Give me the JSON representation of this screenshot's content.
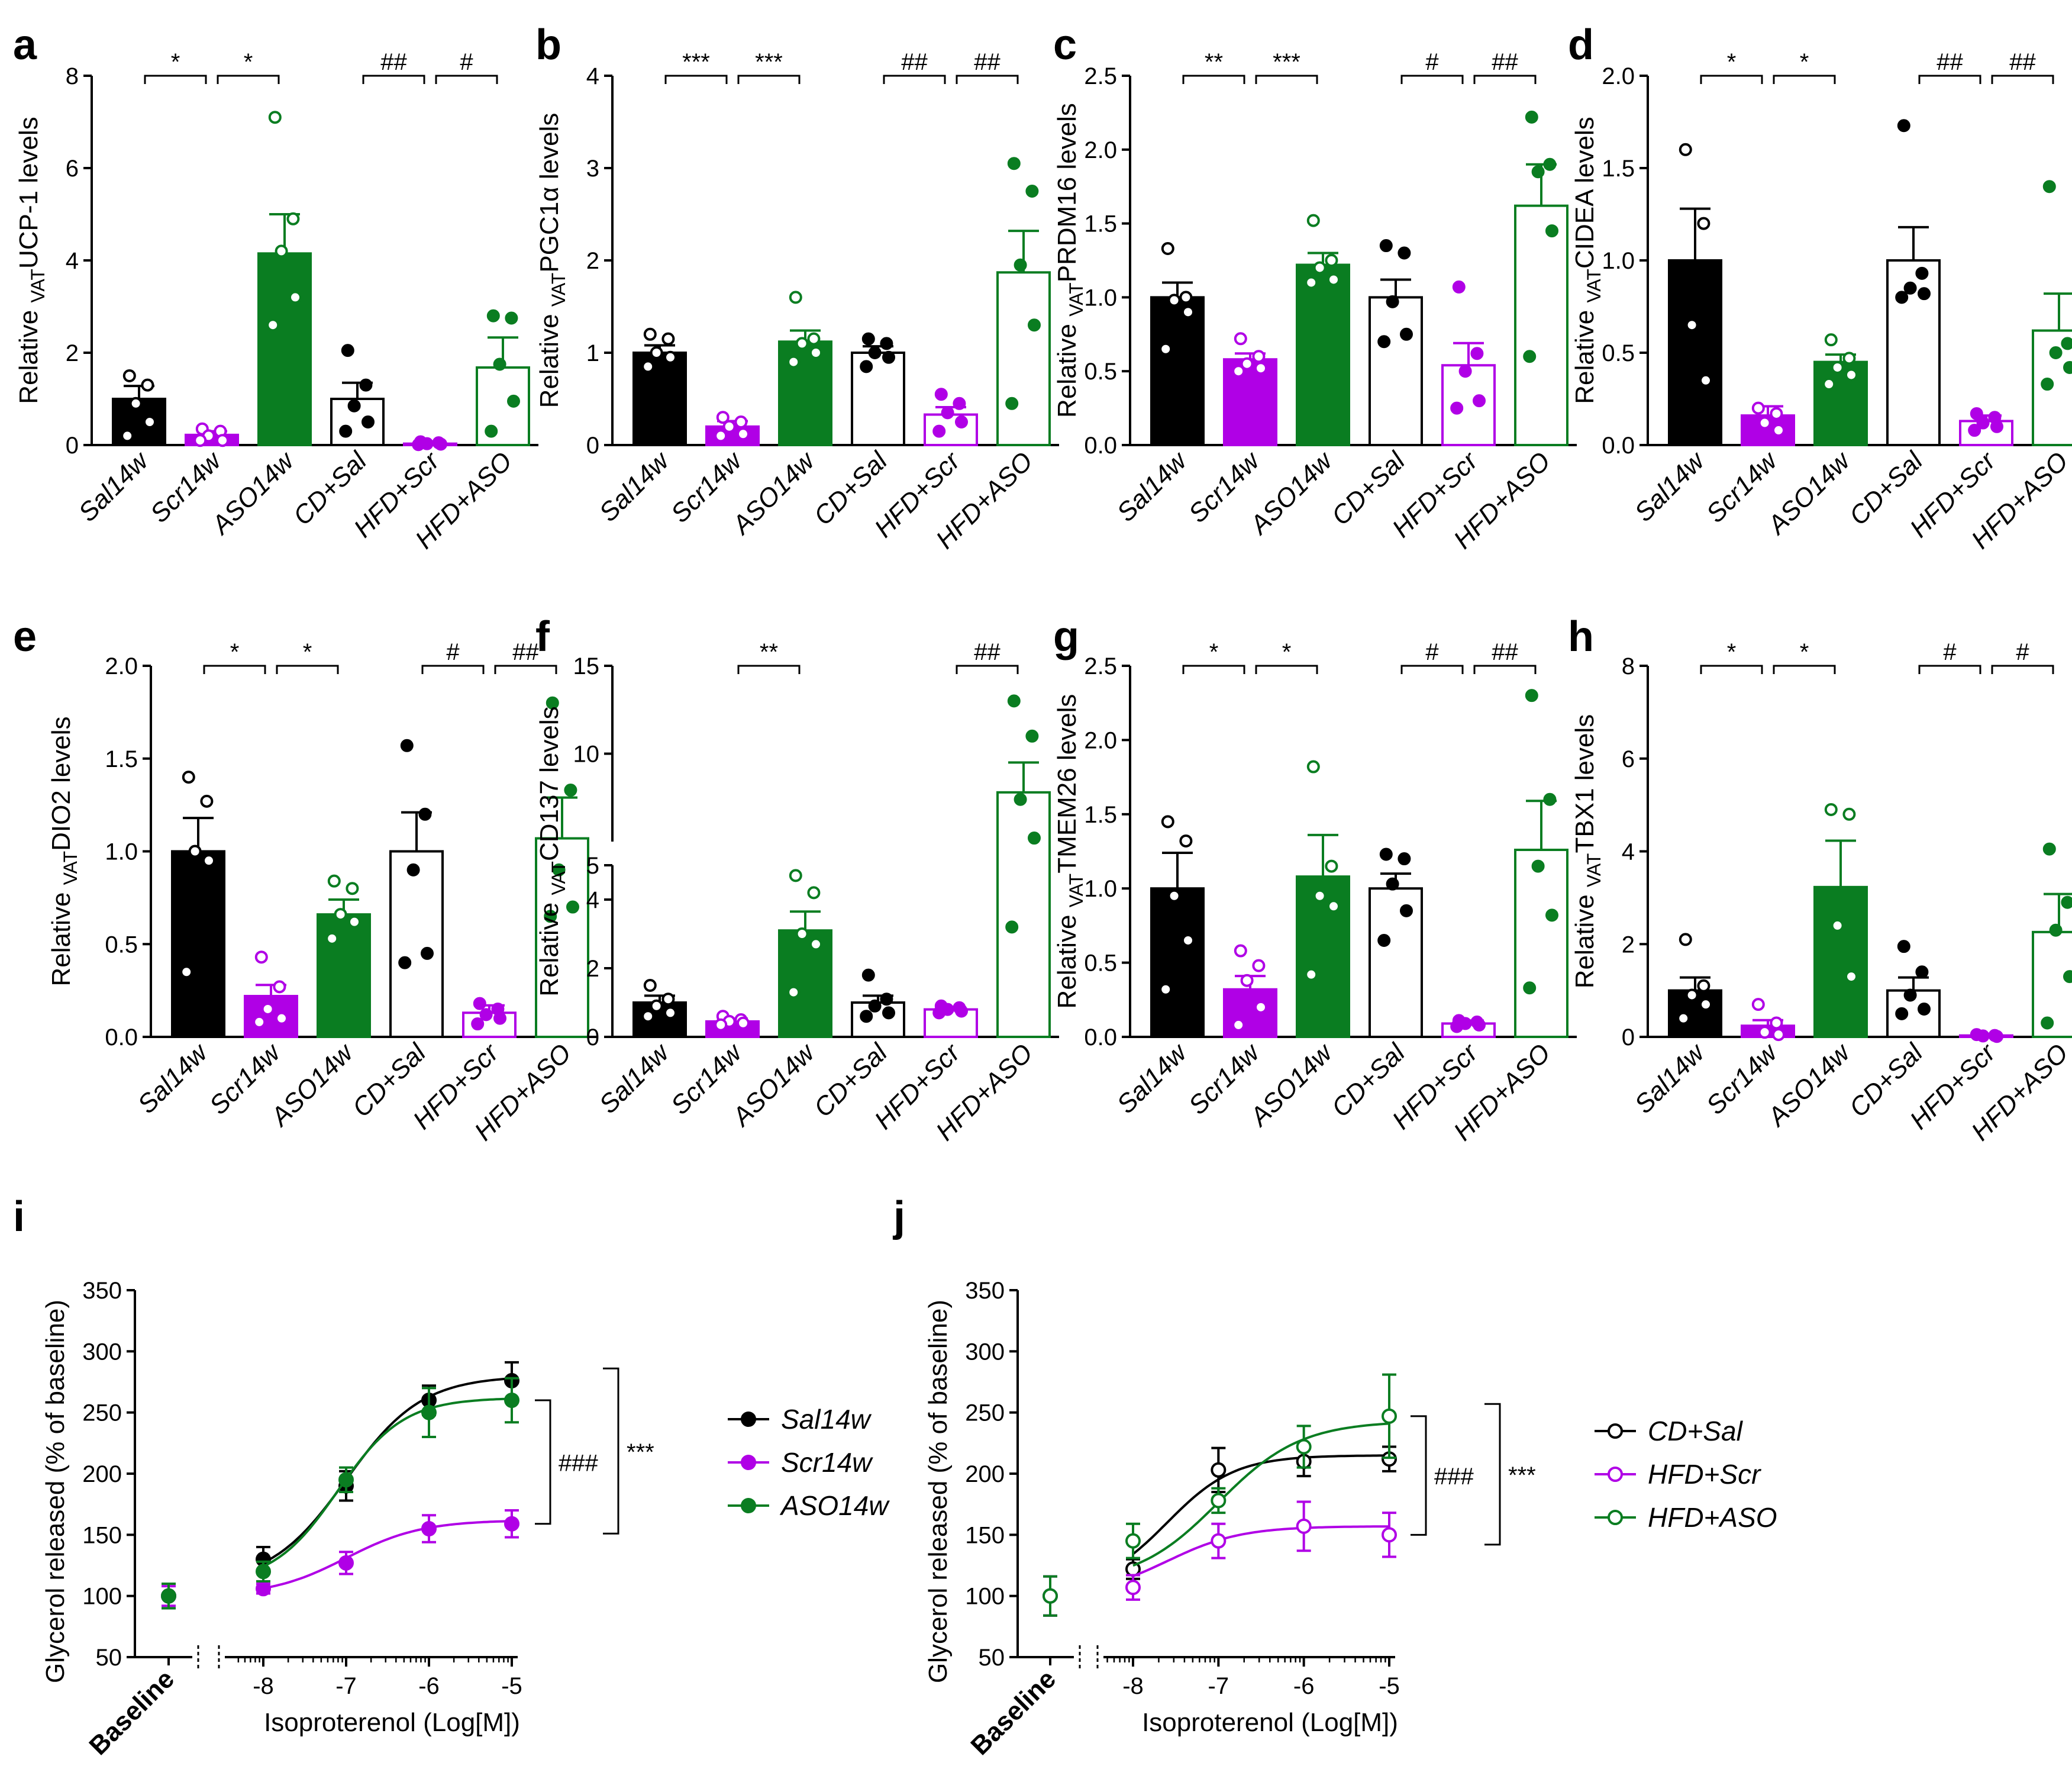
{
  "colors": {
    "black": "#000000",
    "purple": "#B000E6",
    "green": "#0A7D21",
    "white": "#FFFFFF"
  },
  "chart_data": [
    {
      "id": "a",
      "type": "bar",
      "label": "a",
      "ylabel_pre": "Relative ",
      "ylabel_sub": "VAT",
      "ylabel_post": "UCP-1 levels",
      "categories": [
        "Sal14w",
        "Scr14w",
        "ASO14w",
        "CD+Sal",
        "HFD+Scr",
        "HFD+ASO"
      ],
      "values": [
        1.0,
        0.22,
        4.15,
        1.0,
        0.03,
        1.68
      ],
      "errors": [
        0.28,
        0.08,
        0.85,
        0.35,
        0.02,
        0.65
      ],
      "points": [
        [
          1.5,
          1.3,
          0.9,
          0.5,
          0.2
        ],
        [
          0.35,
          0.3,
          0.2,
          0.1,
          0.1
        ],
        [
          7.1,
          4.9,
          4.2,
          3.2,
          2.6
        ],
        [
          2.05,
          1.3,
          0.85,
          0.5,
          0.3
        ],
        [
          0.07,
          0.05,
          0.03,
          0.02,
          0.01
        ],
        [
          2.8,
          2.75,
          1.75,
          0.95,
          0.3
        ]
      ],
      "ylim": [
        0,
        8
      ],
      "yticks": [
        0,
        2,
        4,
        6,
        8
      ],
      "ytick_labels": [
        "0",
        "2",
        "4",
        "6",
        "8"
      ],
      "sig": [
        {
          "from": 0,
          "to": 1,
          "text": "*"
        },
        {
          "from": 1,
          "to": 2,
          "text": "*"
        },
        {
          "from": 3,
          "to": 4,
          "text": "##"
        },
        {
          "from": 4,
          "to": 5,
          "text": "#"
        }
      ]
    },
    {
      "id": "b",
      "type": "bar",
      "label": "b",
      "ylabel_pre": "Relative ",
      "ylabel_sub": "VAT",
      "ylabel_post": "PGC1α levels",
      "categories": [
        "Sal14w",
        "Scr14w",
        "ASO14w",
        "CD+Sal",
        "HFD+Scr",
        "HFD+ASO"
      ],
      "values": [
        1.0,
        0.2,
        1.12,
        1.0,
        0.33,
        1.87
      ],
      "errors": [
        0.08,
        0.06,
        0.12,
        0.07,
        0.08,
        0.45
      ],
      "points": [
        [
          1.2,
          1.15,
          1.0,
          0.95,
          0.85
        ],
        [
          0.3,
          0.25,
          0.2,
          0.12,
          0.1
        ],
        [
          1.6,
          1.15,
          1.1,
          1.0,
          0.9
        ],
        [
          1.15,
          1.1,
          1.0,
          0.95,
          0.85
        ],
        [
          0.55,
          0.45,
          0.35,
          0.25,
          0.15
        ],
        [
          3.05,
          2.75,
          1.95,
          1.3,
          0.45
        ]
      ],
      "ylim": [
        0,
        4
      ],
      "yticks": [
        0,
        1,
        2,
        3,
        4
      ],
      "ytick_labels": [
        "0",
        "1",
        "2",
        "3",
        "4"
      ],
      "sig": [
        {
          "from": 0,
          "to": 1,
          "text": "***"
        },
        {
          "from": 1,
          "to": 2,
          "text": "***"
        },
        {
          "from": 3,
          "to": 4,
          "text": "##"
        },
        {
          "from": 4,
          "to": 5,
          "text": "##"
        }
      ]
    },
    {
      "id": "c",
      "type": "bar",
      "label": "c",
      "ylabel_pre": "Relative ",
      "ylabel_sub": "VAT",
      "ylabel_post": "PRDM16 levels",
      "categories": [
        "Sal14w",
        "Scr14w",
        "ASO14w",
        "CD+Sal",
        "HFD+Scr",
        "HFD+ASO"
      ],
      "values": [
        1.0,
        0.58,
        1.22,
        1.0,
        0.54,
        1.62
      ],
      "errors": [
        0.1,
        0.04,
        0.08,
        0.12,
        0.15,
        0.28
      ],
      "points": [
        [
          1.33,
          1.0,
          0.98,
          0.9,
          0.65
        ],
        [
          0.72,
          0.6,
          0.55,
          0.52,
          0.5
        ],
        [
          1.52,
          1.25,
          1.2,
          1.12,
          1.1
        ],
        [
          1.35,
          1.3,
          0.97,
          0.75,
          0.7
        ],
        [
          1.07,
          0.62,
          0.5,
          0.3,
          0.25
        ],
        [
          2.22,
          1.9,
          1.85,
          1.45,
          0.6
        ]
      ],
      "ylim": [
        0,
        2.5
      ],
      "yticks": [
        0,
        0.5,
        1.0,
        1.5,
        2.0,
        2.5
      ],
      "ytick_labels": [
        "0.0",
        "0.5",
        "1.0",
        "1.5",
        "2.0",
        "2.5"
      ],
      "sig": [
        {
          "from": 0,
          "to": 1,
          "text": "**"
        },
        {
          "from": 1,
          "to": 2,
          "text": "***"
        },
        {
          "from": 3,
          "to": 4,
          "text": "#"
        },
        {
          "from": 4,
          "to": 5,
          "text": "##"
        }
      ]
    },
    {
      "id": "d",
      "type": "bar",
      "label": "d",
      "ylabel_pre": "Relative ",
      "ylabel_sub": "VAT",
      "ylabel_post": "CIDEA levels",
      "categories": [
        "Sal14w",
        "Scr14w",
        "ASO14w",
        "CD+Sal",
        "HFD+Scr",
        "HFD+ASO"
      ],
      "values": [
        1.0,
        0.16,
        0.45,
        1.0,
        0.13,
        0.62
      ],
      "errors": [
        0.28,
        0.05,
        0.04,
        0.18,
        0.03,
        0.2
      ],
      "points": [
        [
          1.6,
          1.2,
          0.65,
          0.35
        ],
        [
          0.2,
          0.17,
          0.12,
          0.08
        ],
        [
          0.57,
          0.47,
          0.42,
          0.38,
          0.33
        ],
        [
          1.73,
          0.93,
          0.85,
          0.82,
          0.8
        ],
        [
          0.17,
          0.15,
          0.12,
          0.1,
          0.08
        ],
        [
          1.4,
          0.55,
          0.5,
          0.42,
          0.33
        ]
      ],
      "ylim": [
        0,
        2.0
      ],
      "yticks": [
        0,
        0.5,
        1.0,
        1.5,
        2.0
      ],
      "ytick_labels": [
        "0.0",
        "0.5",
        "1.0",
        "1.5",
        "2.0"
      ],
      "sig": [
        {
          "from": 0,
          "to": 1,
          "text": "*"
        },
        {
          "from": 1,
          "to": 2,
          "text": "*"
        },
        {
          "from": 3,
          "to": 4,
          "text": "##"
        },
        {
          "from": 4,
          "to": 5,
          "text": "##"
        }
      ]
    },
    {
      "id": "e",
      "type": "bar",
      "label": "e",
      "ylabel_pre": "Relative ",
      "ylabel_sub": "VAT",
      "ylabel_post": "DIO2 levels",
      "categories": [
        "Sal14w",
        "Scr14w",
        "ASO14w",
        "CD+Sal",
        "HFD+Scr",
        "HFD+ASO"
      ],
      "values": [
        1.0,
        0.22,
        0.66,
        1.0,
        0.13,
        1.07
      ],
      "errors": [
        0.18,
        0.06,
        0.08,
        0.21,
        0.04,
        0.22
      ],
      "points": [
        [
          1.4,
          1.27,
          1.0,
          0.95,
          0.35
        ],
        [
          0.43,
          0.27,
          0.15,
          0.1,
          0.08
        ],
        [
          0.84,
          0.8,
          0.66,
          0.62,
          0.53
        ],
        [
          1.57,
          1.2,
          0.9,
          0.45,
          0.4
        ],
        [
          0.18,
          0.15,
          0.12,
          0.1,
          0.07
        ],
        [
          1.8,
          1.33,
          0.9,
          0.7,
          0.65
        ]
      ],
      "ylim": [
        0,
        2.0
      ],
      "yticks": [
        0,
        0.5,
        1.0,
        1.5,
        2.0
      ],
      "ytick_labels": [
        "0.0",
        "0.5",
        "1.0",
        "1.5",
        "2.0"
      ],
      "sig": [
        {
          "from": 0,
          "to": 1,
          "text": "*"
        },
        {
          "from": 1,
          "to": 2,
          "text": "*"
        },
        {
          "from": 3,
          "to": 4,
          "text": "#"
        },
        {
          "from": 4,
          "to": 5,
          "text": "##"
        }
      ]
    },
    {
      "id": "f",
      "type": "bar",
      "label": "f",
      "ylabel_pre": "Relative ",
      "ylabel_sub": "VAT",
      "ylabel_post": "CD137 levels",
      "categories": [
        "Sal14w",
        "Scr14w",
        "ASO14w",
        "CD+Sal",
        "HFD+Scr",
        "HFD+ASO"
      ],
      "values": [
        1.0,
        0.45,
        3.1,
        1.0,
        0.8,
        7.8
      ],
      "errors": [
        0.2,
        0.08,
        0.55,
        0.2,
        0.06,
        1.7
      ],
      "points": [
        [
          1.5,
          1.1,
          0.9,
          0.7,
          0.6
        ],
        [
          0.6,
          0.5,
          0.45,
          0.4,
          0.35
        ],
        [
          4.7,
          4.2,
          3.0,
          2.7,
          1.3
        ],
        [
          1.8,
          1.1,
          0.9,
          0.7,
          0.6
        ],
        [
          0.9,
          0.85,
          0.8,
          0.75,
          0.7
        ],
        [
          13.0,
          11.0,
          7.4,
          5.2,
          3.2
        ]
      ],
      "ylim": [
        0,
        15
      ],
      "broken_axis": [
        5,
        5
      ],
      "yticks": [
        0,
        2,
        4,
        5,
        10,
        15
      ],
      "ytick_labels": [
        "0",
        "2",
        "4",
        "5",
        "10",
        "15"
      ],
      "sig": [
        {
          "from": 1,
          "to": 2,
          "text": "**"
        },
        {
          "from": 4,
          "to": 5,
          "text": "##"
        }
      ]
    },
    {
      "id": "g",
      "type": "bar",
      "label": "g",
      "ylabel_pre": "Relative ",
      "ylabel_sub": "VAT",
      "ylabel_post": "TMEM26 levels",
      "categories": [
        "Sal14w",
        "Scr14w",
        "ASO14w",
        "CD+Sal",
        "HFD+Scr",
        "HFD+ASO"
      ],
      "values": [
        1.0,
        0.32,
        1.08,
        1.0,
        0.09,
        1.26
      ],
      "errors": [
        0.24,
        0.09,
        0.28,
        0.1,
        0.02,
        0.33
      ],
      "points": [
        [
          1.45,
          1.32,
          0.95,
          0.65,
          0.32
        ],
        [
          0.58,
          0.48,
          0.38,
          0.2,
          0.08
        ],
        [
          1.82,
          1.15,
          0.95,
          0.88,
          0.42
        ],
        [
          1.23,
          1.2,
          1.03,
          0.85,
          0.65
        ],
        [
          0.11,
          0.1,
          0.09,
          0.08,
          0.07
        ],
        [
          2.3,
          1.6,
          1.15,
          0.82,
          0.33
        ]
      ],
      "ylim": [
        0,
        2.5
      ],
      "yticks": [
        0,
        0.5,
        1.0,
        1.5,
        2.0,
        2.5
      ],
      "ytick_labels": [
        "0.0",
        "0.5",
        "1.0",
        "1.5",
        "2.0",
        "2.5"
      ],
      "sig": [
        {
          "from": 0,
          "to": 1,
          "text": "*"
        },
        {
          "from": 1,
          "to": 2,
          "text": "*"
        },
        {
          "from": 3,
          "to": 4,
          "text": "#"
        },
        {
          "from": 4,
          "to": 5,
          "text": "##"
        }
      ]
    },
    {
      "id": "h",
      "type": "bar",
      "label": "h",
      "ylabel_pre": "Relative ",
      "ylabel_sub": "VAT",
      "ylabel_post": "TBX1 levels",
      "categories": [
        "Sal14w",
        "Scr14w",
        "ASO14w",
        "CD+Sal",
        "HFD+Scr",
        "HFD+ASO"
      ],
      "values": [
        1.0,
        0.24,
        3.23,
        1.0,
        0.03,
        2.26
      ],
      "errors": [
        0.28,
        0.12,
        1.0,
        0.28,
        0.01,
        0.82
      ],
      "points": [
        [
          2.1,
          1.1,
          0.9,
          0.7,
          0.4
        ],
        [
          0.7,
          0.3,
          0.1,
          0.05
        ],
        [
          4.9,
          4.8,
          2.4,
          1.3
        ],
        [
          1.95,
          1.4,
          0.9,
          0.6,
          0.5
        ],
        [
          0.05,
          0.03,
          0.02,
          0.01
        ],
        [
          4.05,
          2.9,
          2.3,
          1.3,
          0.3
        ]
      ],
      "ylim": [
        0,
        8
      ],
      "yticks": [
        0,
        2,
        4,
        6,
        8
      ],
      "ytick_labels": [
        "0",
        "2",
        "4",
        "6",
        "8"
      ],
      "sig": [
        {
          "from": 0,
          "to": 1,
          "text": "*"
        },
        {
          "from": 1,
          "to": 2,
          "text": "*"
        },
        {
          "from": 3,
          "to": 4,
          "text": "#"
        },
        {
          "from": 4,
          "to": 5,
          "text": "#"
        }
      ]
    },
    {
      "id": "i",
      "type": "line",
      "label": "i",
      "ylabel": "Glycerol released (% of baseline)",
      "xlabel": "Isoproterenol (Log[M])",
      "x": [
        -8,
        -7,
        -6,
        -5
      ],
      "xticks": [
        -8,
        -7,
        -6,
        -5
      ],
      "xtick_labels": [
        "-8",
        "-7",
        "-6",
        "-5"
      ],
      "ylim": [
        50,
        350
      ],
      "yticks": [
        50,
        100,
        150,
        200,
        250,
        300,
        350
      ],
      "ytick_labels": [
        "50",
        "100",
        "150",
        "200",
        "250",
        "300",
        "350"
      ],
      "baseline_label": "Baseline",
      "series": [
        {
          "name": "Sal14w",
          "color": "#000000",
          "filled": true,
          "baseline": 100,
          "baseline_err": 10,
          "values": [
            130,
            190,
            260,
            276
          ],
          "errors": [
            10,
            12,
            12,
            15
          ],
          "fit": {
            "bottom": 110,
            "top": 280,
            "ec50": -7.0,
            "hill": 0.95
          }
        },
        {
          "name": "Scr14w",
          "color": "#B000E6",
          "filled": true,
          "baseline": 100,
          "baseline_err": 8,
          "values": [
            106,
            127,
            155,
            159
          ],
          "errors": [
            4,
            9,
            11,
            11
          ],
          "fit": {
            "bottom": 100,
            "top": 162,
            "ec50": -7.0,
            "hill": 0.95
          }
        },
        {
          "name": "ASO14w",
          "color": "#0A7D21",
          "filled": true,
          "baseline": 100,
          "baseline_err": 10,
          "values": [
            120,
            195,
            250,
            260
          ],
          "errors": [
            8,
            10,
            20,
            18
          ],
          "fit": {
            "bottom": 110,
            "top": 262,
            "ec50": -7.1,
            "hill": 1.1
          }
        }
      ],
      "brackets": [
        {
          "from": 1,
          "to": 2,
          "text": "###"
        },
        {
          "from": 0,
          "to": 1,
          "text": "***"
        }
      ]
    },
    {
      "id": "j",
      "type": "line",
      "label": "j",
      "ylabel": "Glycerol released (% of baseline)",
      "xlabel": "Isoproterenol (Log[M])",
      "x": [
        -8,
        -7,
        -6,
        -5
      ],
      "xticks": [
        -8,
        -7,
        -6,
        -5
      ],
      "xtick_labels": [
        "-8",
        "-7",
        "-6",
        "-5"
      ],
      "ylim": [
        50,
        350
      ],
      "yticks": [
        50,
        100,
        150,
        200,
        250,
        300,
        350
      ],
      "ytick_labels": [
        "50",
        "100",
        "150",
        "200",
        "250",
        "300",
        "350"
      ],
      "baseline_label": "Baseline",
      "series": [
        {
          "name": "CD+Sal",
          "color": "#000000",
          "filled": false,
          "baseline": 100,
          "baseline_err": 16,
          "values": [
            122,
            203,
            210,
            212
          ],
          "errors": [
            8,
            18,
            12,
            10
          ],
          "fit": {
            "bottom": 105,
            "top": 215,
            "ec50": -7.6,
            "hill": 1.1
          }
        },
        {
          "name": "HFD+Scr",
          "color": "#B000E6",
          "filled": false,
          "baseline": 100,
          "baseline_err": 16,
          "values": [
            107,
            145,
            157,
            150
          ],
          "errors": [
            10,
            14,
            20,
            18
          ],
          "fit": {
            "bottom": 100,
            "top": 157,
            "ec50": -7.6,
            "hill": 1.0
          }
        },
        {
          "name": "HFD+ASO",
          "color": "#0A7D21",
          "filled": false,
          "baseline": 100,
          "baseline_err": 16,
          "values": [
            145,
            178,
            222,
            247
          ],
          "errors": [
            14,
            10,
            17,
            34
          ],
          "fit": {
            "bottom": 110,
            "top": 243,
            "ec50": -7.0,
            "hill": 0.9
          }
        }
      ],
      "brackets": [
        {
          "from": 1,
          "to": 2,
          "text": "###"
        },
        {
          "from": 0,
          "to": 1,
          "text": "***"
        }
      ]
    }
  ]
}
